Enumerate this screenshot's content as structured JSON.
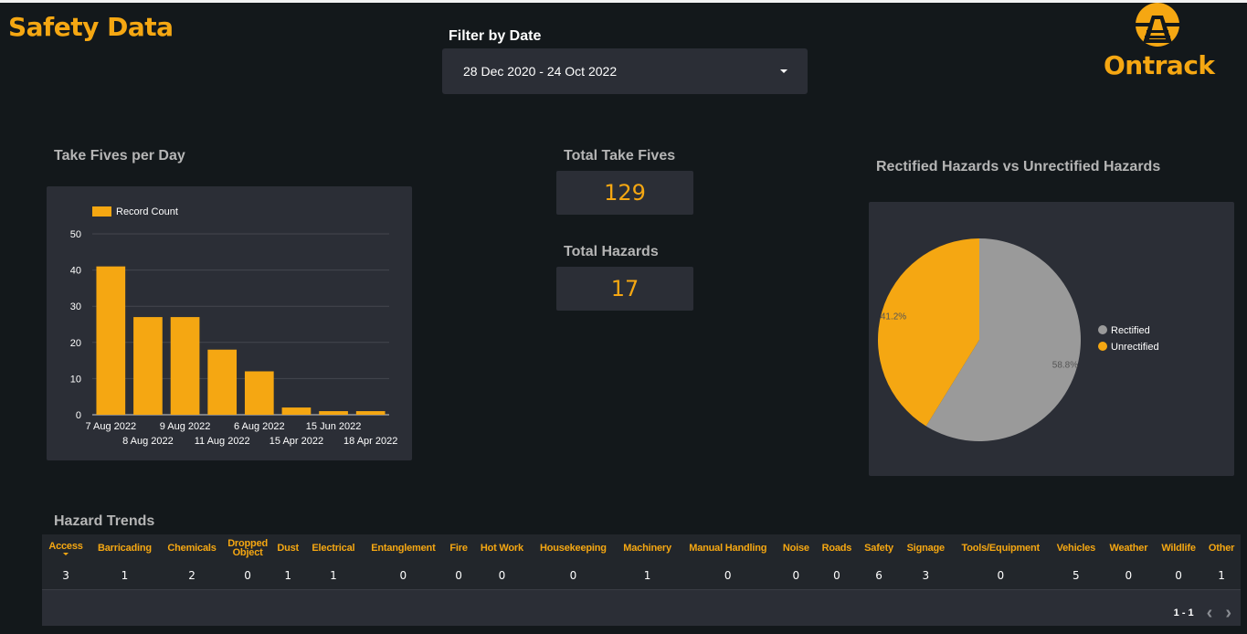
{
  "header": {
    "title": "Safety Data",
    "filter_label": "Filter by Date",
    "date_range": "28 Dec 2020 - 24 Oct 2022",
    "logo_text": "Ontrack"
  },
  "kpis": {
    "take_fives_label": "Total Take Fives",
    "take_fives_value": "129",
    "hazards_label": "Total Hazards",
    "hazards_value": "17"
  },
  "bar_section_title": "Take Fives per Day",
  "pie_section_title": "Rectified Hazards vs Unrectified Hazards",
  "table_section_title": "Hazard Trends",
  "chart_data": [
    {
      "type": "bar",
      "categories": [
        "7 Aug 2022",
        "8 Aug 2022",
        "9 Aug 2022",
        "11 Aug 2022",
        "6 Aug 2022",
        "15 Apr 2022",
        "15 Jun 2022",
        "18 Apr 2022"
      ],
      "series": [
        {
          "name": "Record Count",
          "values": [
            41,
            27,
            27,
            18,
            12,
            2,
            1,
            1
          ]
        }
      ],
      "ylim": [
        0,
        50
      ],
      "yticks": [
        0,
        10,
        20,
        30,
        40,
        50
      ],
      "grid": true,
      "legend": "top-left",
      "color": "#f5a712"
    },
    {
      "type": "pie",
      "labels": [
        "Rectified",
        "Unrectified"
      ],
      "values": [
        58.8,
        41.2
      ],
      "value_labels": [
        "58.8%",
        "41.2%"
      ],
      "colors": [
        "#9a9a9a",
        "#f5a712"
      ],
      "legend": "right"
    }
  ],
  "table": {
    "columns": [
      "Access",
      "Barricading",
      "Chemicals",
      "Dropped Object",
      "Dust",
      "Electrical",
      "Entanglement",
      "Fire",
      "Hot Work",
      "Housekeeping",
      "Machinery",
      "Manual Handling",
      "Noise",
      "Roads",
      "Safety",
      "Signage",
      "Tools/Equipment",
      "Vehicles",
      "Weather",
      "Wildlife",
      "Other"
    ],
    "rows": [
      [
        "3",
        "1",
        "2",
        "0",
        "1",
        "1",
        "0",
        "0",
        "0",
        "0",
        "1",
        "0",
        "0",
        "0",
        "6",
        "3",
        "0",
        "5",
        "0",
        "0",
        "1"
      ]
    ],
    "pagination": "1 - 1"
  },
  "colors": {
    "accent": "#f5a712",
    "background": "#13181b",
    "card": "#2b2e36"
  },
  "icons": {
    "dropdown": "caret-down-icon",
    "prev": "chevron-left-icon",
    "next": "chevron-right-icon",
    "logo": "ontrack-logo"
  }
}
